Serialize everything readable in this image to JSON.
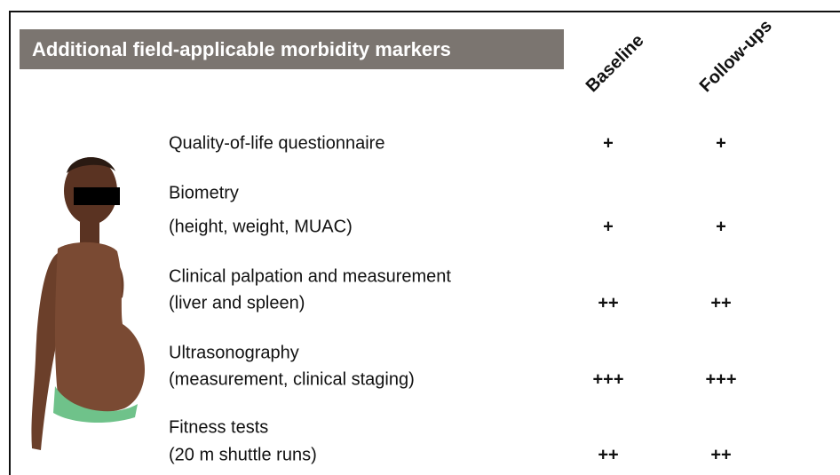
{
  "header": {
    "title": "Additional field-applicable morbidity markers"
  },
  "columns": [
    "Baseline",
    "Follow-ups"
  ],
  "rows": [
    {
      "lines": [
        "Quality-of-life questionnaire"
      ],
      "marks": [
        "+",
        "+"
      ]
    },
    {
      "lines": [
        "Biometry",
        "(height, weight, MUAC)"
      ],
      "marks": [
        "+",
        "+"
      ]
    },
    {
      "lines": [
        "Clinical palpation and measurement",
        "(liver and spleen)"
      ],
      "marks": [
        "++",
        "++"
      ]
    },
    {
      "lines": [
        "Ultrasonography",
        "(measurement, clinical staging)"
      ],
      "marks": [
        "+++",
        "+++"
      ]
    },
    {
      "lines": [
        "Fitness tests",
        "(20 m shuttle runs)"
      ],
      "marks": [
        "++",
        "++"
      ]
    }
  ]
}
